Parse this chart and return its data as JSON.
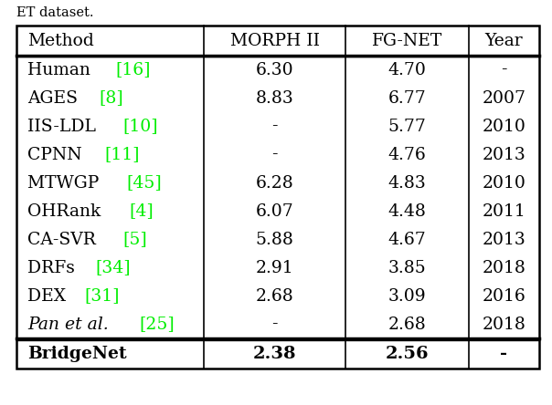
{
  "caption": "ET dataset.",
  "headers": [
    "Method",
    "MORPH II",
    "FG-NET",
    "Year"
  ],
  "rows": [
    {
      "method": "Human",
      "ref": "16",
      "morph": "6.30",
      "fgnet": "4.70",
      "year": "-",
      "italic": false
    },
    {
      "method": "AGES",
      "ref": "8",
      "morph": "8.83",
      "fgnet": "6.77",
      "year": "2007",
      "italic": false
    },
    {
      "method": "IIS-LDL",
      "ref": "10",
      "morph": "-",
      "fgnet": "5.77",
      "year": "2010",
      "italic": false
    },
    {
      "method": "CPNN",
      "ref": "11",
      "morph": "-",
      "fgnet": "4.76",
      "year": "2013",
      "italic": false
    },
    {
      "method": "MTWGP",
      "ref": "45",
      "morph": "6.28",
      "fgnet": "4.83",
      "year": "2010",
      "italic": false
    },
    {
      "method": "OHRank",
      "ref": "4",
      "morph": "6.07",
      "fgnet": "4.48",
      "year": "2011",
      "italic": false
    },
    {
      "method": "CA-SVR",
      "ref": "5",
      "morph": "5.88",
      "fgnet": "4.67",
      "year": "2013",
      "italic": false
    },
    {
      "method": "DRFs",
      "ref": "34",
      "morph": "2.91",
      "fgnet": "3.85",
      "year": "2018",
      "italic": false
    },
    {
      "method": "DEX",
      "ref": "31",
      "morph": "2.68",
      "fgnet": "3.09",
      "year": "2016",
      "italic": false
    },
    {
      "method": "Pan et al.",
      "ref": "25",
      "morph": "-",
      "fgnet": "2.68",
      "year": "2018",
      "italic": true
    }
  ],
  "last_row": {
    "method": "BridgeNet",
    "morph": "2.38",
    "fgnet": "2.56",
    "year": "-"
  },
  "ref_color": "#00ee00",
  "text_color": "#000000",
  "bg_color": "#ffffff",
  "fontsize": 13.5,
  "font_family": "DejaVu Serif"
}
